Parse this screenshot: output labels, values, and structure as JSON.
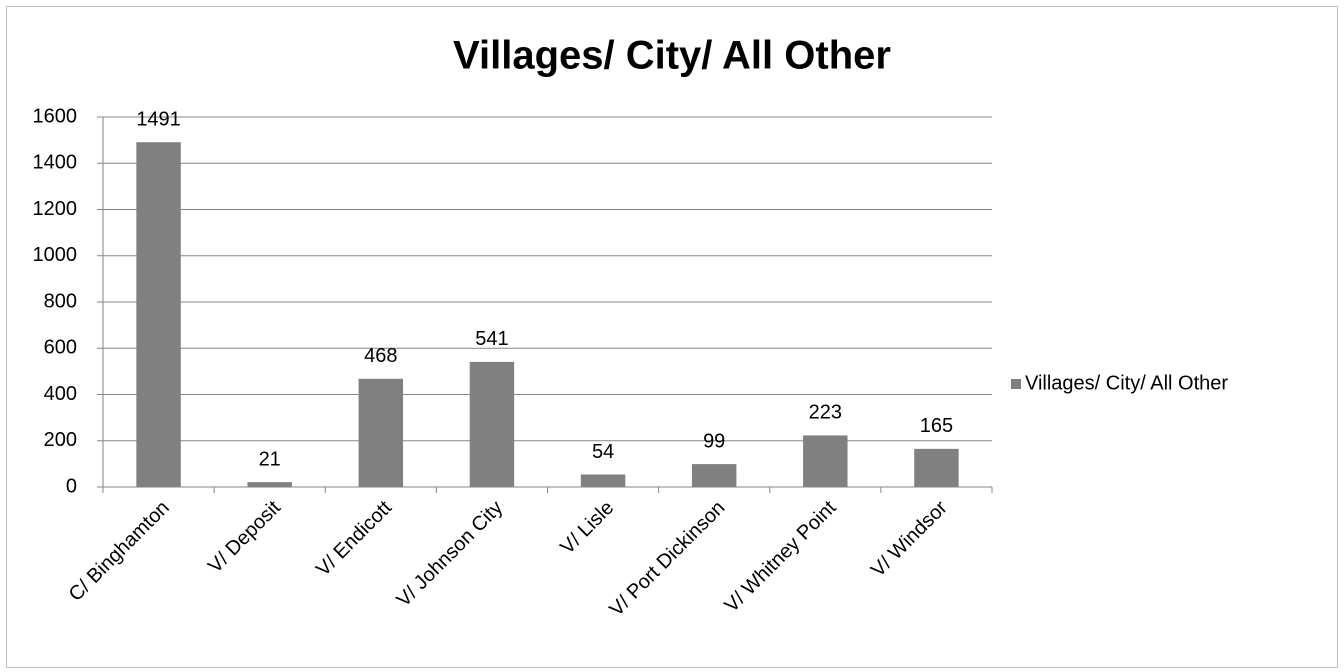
{
  "chart_data": {
    "type": "bar",
    "title": "Villages/ City/ All Other",
    "categories": [
      "C/ Binghamton",
      "V/ Deposit",
      "V/ Endicott",
      "V/ Johnson City",
      "V/ Lisle",
      "V/ Port Dickinson",
      "V/ Whitney Point",
      "V/ Windsor"
    ],
    "series": [
      {
        "name": "Villages/ City/ All Other",
        "color": "#808080",
        "values": [
          1491,
          21,
          468,
          541,
          54,
          99,
          223,
          165
        ]
      }
    ],
    "ylim": [
      0,
      1600
    ],
    "yticks": [
      0,
      200,
      400,
      600,
      800,
      1000,
      1200,
      1400,
      1600
    ],
    "grid": true,
    "legend": "right"
  }
}
